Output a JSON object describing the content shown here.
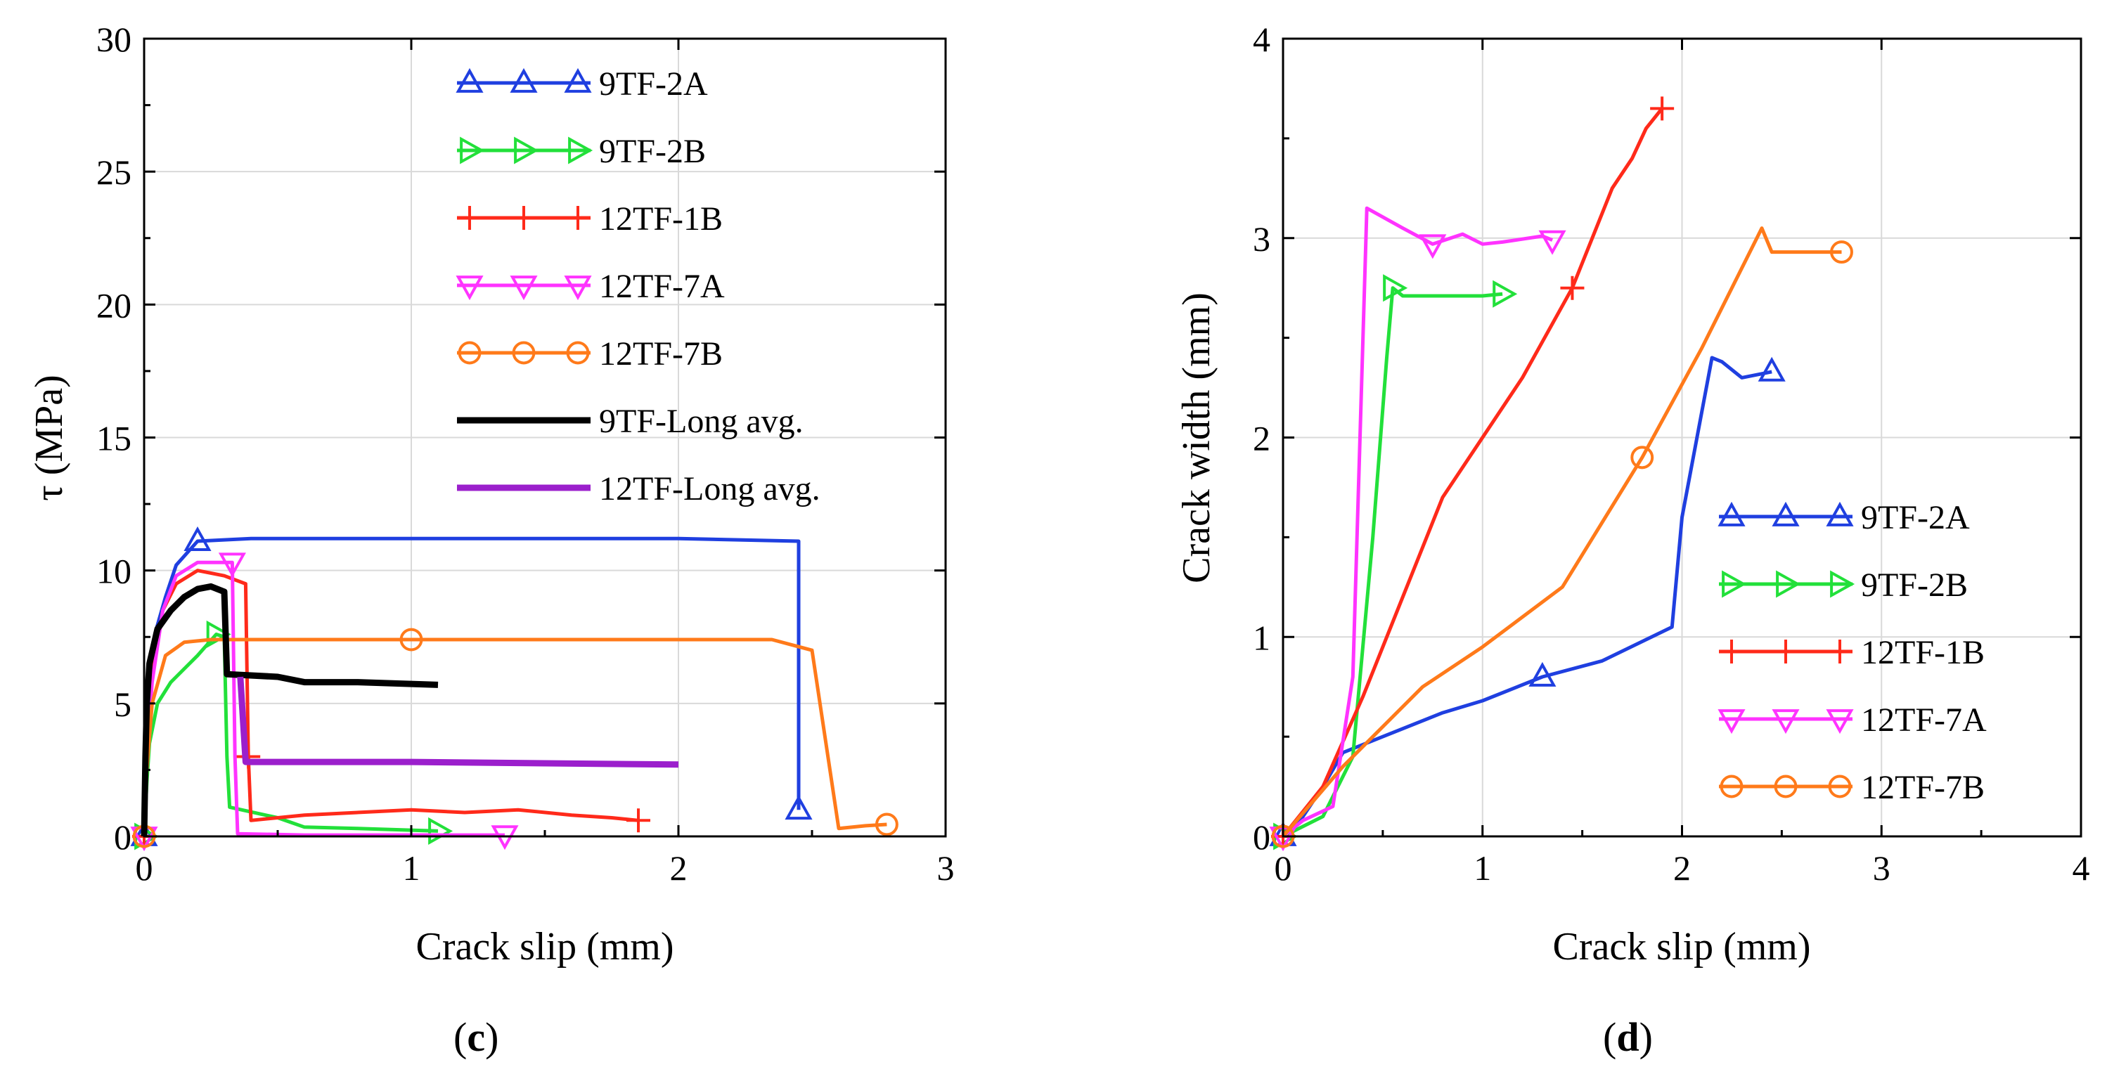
{
  "chart_data": [
    {
      "panel": "(c)",
      "caption_letter": "c",
      "type": "line",
      "title": "",
      "xlabel": "Crack slip (mm)",
      "ylabel": "τ (MPa)",
      "xlim": [
        0,
        3
      ],
      "ylim": [
        0,
        30
      ],
      "xticks": [
        "0",
        "1",
        "2",
        "3"
      ],
      "yticks": [
        "0",
        "5",
        "10",
        "15",
        "20",
        "25",
        "30"
      ],
      "grid": true,
      "legend_position": "top-right",
      "series": [
        {
          "name": "9TF-2A",
          "color": "#1f3fe0",
          "marker": "triangle-up",
          "x": [
            0,
            0.005,
            0.01,
            0.02,
            0.04,
            0.08,
            0.12,
            0.2,
            0.4,
            1.0,
            2.0,
            2.45,
            2.45,
            2.45
          ],
          "y": [
            0,
            2,
            4,
            6,
            7.6,
            9,
            10.2,
            11.1,
            11.2,
            11.2,
            11.2,
            11.1,
            1.7,
            1.0
          ]
        },
        {
          "name": "9TF-2B",
          "color": "#22e03a",
          "marker": "triangle-right",
          "x": [
            0,
            0.01,
            0.02,
            0.05,
            0.1,
            0.15,
            0.2,
            0.27,
            0.3,
            0.31,
            0.32,
            0.5,
            0.6,
            0.8,
            1.1
          ],
          "y": [
            0,
            2,
            3.5,
            5,
            5.8,
            6.3,
            6.8,
            7.6,
            7.5,
            3,
            1.1,
            0.7,
            0.35,
            0.3,
            0.2
          ]
        },
        {
          "name": "12TF-1B",
          "color": "#ff2a1a",
          "marker": "plus",
          "x": [
            0,
            0.01,
            0.03,
            0.07,
            0.12,
            0.2,
            0.3,
            0.38,
            0.39,
            0.4,
            0.6,
            1.0,
            1.2,
            1.4,
            1.6,
            1.75,
            1.85
          ],
          "y": [
            0,
            3,
            6,
            8.5,
            9.5,
            10,
            9.8,
            9.5,
            3,
            0.6,
            0.8,
            1.0,
            0.9,
            1.0,
            0.8,
            0.7,
            0.6
          ]
        },
        {
          "name": "12TF-7A",
          "color": "#ff33ff",
          "marker": "triangle-down",
          "x": [
            0,
            0.01,
            0.03,
            0.07,
            0.12,
            0.2,
            0.33,
            0.34,
            0.35,
            0.6,
            1.0,
            1.35
          ],
          "y": [
            0,
            3,
            5.8,
            8.5,
            9.8,
            10.3,
            10.3,
            3,
            0.1,
            0.05,
            0.05,
            0.05
          ]
        },
        {
          "name": "12TF-7B",
          "color": "#ff7a1a",
          "marker": "circle",
          "x": [
            0,
            0.01,
            0.03,
            0.08,
            0.15,
            0.25,
            0.5,
            1.0,
            1.5,
            2.0,
            2.35,
            2.5,
            2.6,
            2.7,
            2.78
          ],
          "y": [
            0,
            2.5,
            5,
            6.8,
            7.3,
            7.4,
            7.4,
            7.4,
            7.4,
            7.4,
            7.4,
            7.0,
            0.3,
            0.4,
            0.45
          ]
        },
        {
          "name": "9TF-Long avg.",
          "color": "#000000",
          "marker": "none",
          "x": [
            0,
            0.005,
            0.01,
            0.02,
            0.05,
            0.1,
            0.15,
            0.2,
            0.25,
            0.3,
            0.31,
            0.5,
            0.6,
            0.8,
            1.1
          ],
          "y": [
            0,
            3,
            5,
            6.5,
            7.8,
            8.5,
            9,
            9.3,
            9.4,
            9.2,
            6.1,
            6.0,
            5.8,
            5.8,
            5.7
          ]
        },
        {
          "name": "12TF-Long avg.",
          "color": "#9b1fcc",
          "marker": "none",
          "x": [
            0.36,
            0.38,
            0.5,
            1.0,
            1.5,
            2.0
          ],
          "y": [
            6.0,
            2.8,
            2.8,
            2.8,
            2.75,
            2.7
          ]
        }
      ]
    },
    {
      "panel": "(d)",
      "caption_letter": "d",
      "type": "line",
      "title": "",
      "xlabel": "Crack slip (mm)",
      "ylabel": "Crack width (mm)",
      "xlim": [
        0,
        4
      ],
      "ylim": [
        0,
        4
      ],
      "xticks": [
        "0",
        "1",
        "2",
        "3",
        "4"
      ],
      "yticks": [
        "0",
        "1",
        "2",
        "3",
        "4"
      ],
      "grid": true,
      "legend_position": "bottom-right",
      "series": [
        {
          "name": "9TF-2A",
          "color": "#1f3fe0",
          "marker": "triangle-up",
          "x": [
            0,
            0.1,
            0.2,
            0.3,
            0.5,
            0.8,
            1.0,
            1.3,
            1.6,
            1.95,
            2.0,
            2.15,
            2.2,
            2.3,
            2.45
          ],
          "y": [
            0,
            0.1,
            0.25,
            0.42,
            0.5,
            0.62,
            0.68,
            0.8,
            0.88,
            1.05,
            1.6,
            2.4,
            2.38,
            2.3,
            2.33
          ]
        },
        {
          "name": "9TF-2B",
          "color": "#22e03a",
          "marker": "triangle-right",
          "x": [
            0,
            0.2,
            0.35,
            0.45,
            0.52,
            0.55,
            0.6,
            0.8,
            1.0,
            1.1
          ],
          "y": [
            0,
            0.1,
            0.4,
            1.5,
            2.4,
            2.75,
            2.71,
            2.71,
            2.71,
            2.72
          ]
        },
        {
          "name": "12TF-1B",
          "color": "#ff2a1a",
          "marker": "plus",
          "x": [
            0,
            0.2,
            0.4,
            0.8,
            1.2,
            1.45,
            1.55,
            1.65,
            1.75,
            1.82,
            1.9
          ],
          "y": [
            0,
            0.25,
            0.7,
            1.7,
            2.3,
            2.75,
            3.0,
            3.25,
            3.4,
            3.55,
            3.65
          ]
        },
        {
          "name": "12TF-7A",
          "color": "#ff33ff",
          "marker": "triangle-down",
          "x": [
            0,
            0.1,
            0.25,
            0.35,
            0.42,
            0.6,
            0.75,
            0.9,
            1.0,
            1.1,
            1.3,
            1.35
          ],
          "y": [
            0,
            0.08,
            0.15,
            0.8,
            3.15,
            3.05,
            2.97,
            3.02,
            2.97,
            2.98,
            3.01,
            2.99
          ]
        },
        {
          "name": "12TF-7B",
          "color": "#ff7a1a",
          "marker": "circle",
          "x": [
            0,
            0.3,
            0.7,
            1.0,
            1.4,
            1.8,
            2.1,
            2.4,
            2.45,
            2.6,
            2.8
          ],
          "y": [
            0,
            0.35,
            0.75,
            0.95,
            1.25,
            1.9,
            2.45,
            3.05,
            2.93,
            2.93,
            2.93
          ]
        }
      ]
    }
  ]
}
